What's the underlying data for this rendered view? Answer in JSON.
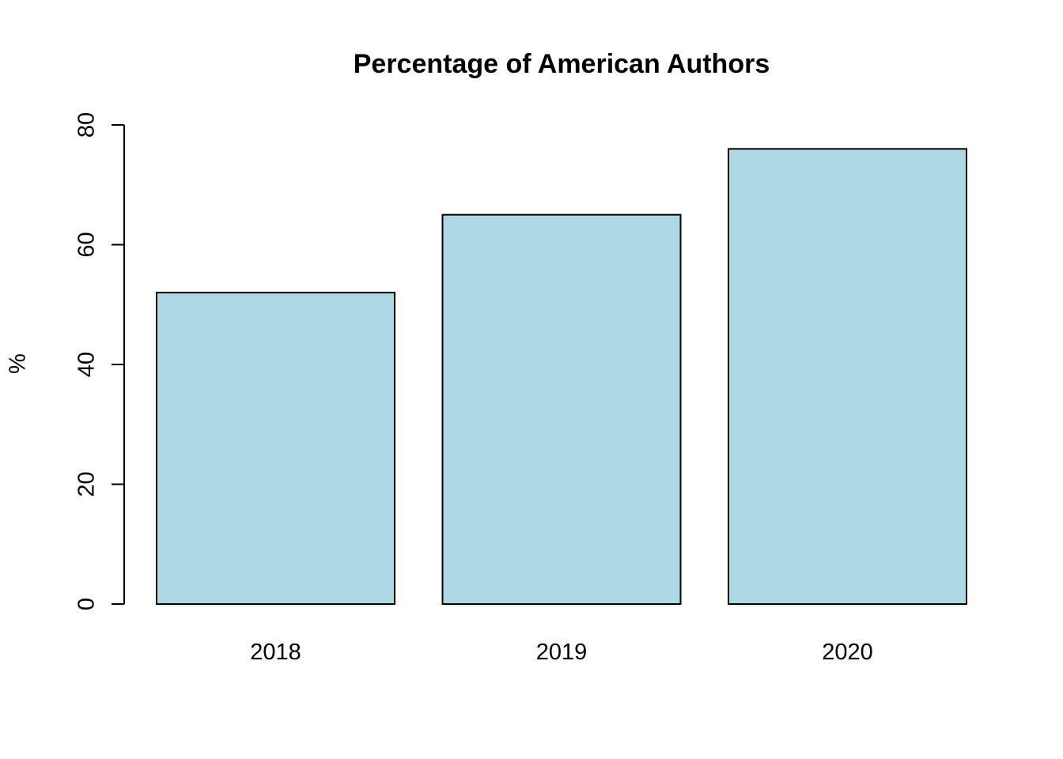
{
  "chart_data": {
    "type": "bar",
    "title": "Percentage of American Authors",
    "xlabel": "",
    "ylabel": "%",
    "categories": [
      "2018",
      "2019",
      "2020"
    ],
    "values": [
      52,
      65,
      76
    ],
    "ylim": [
      0,
      80
    ],
    "yticks": [
      "0",
      "20",
      "40",
      "60",
      "80"
    ],
    "grid": false,
    "bar_color": "#add8e6",
    "bar_border_color": "#000000"
  }
}
